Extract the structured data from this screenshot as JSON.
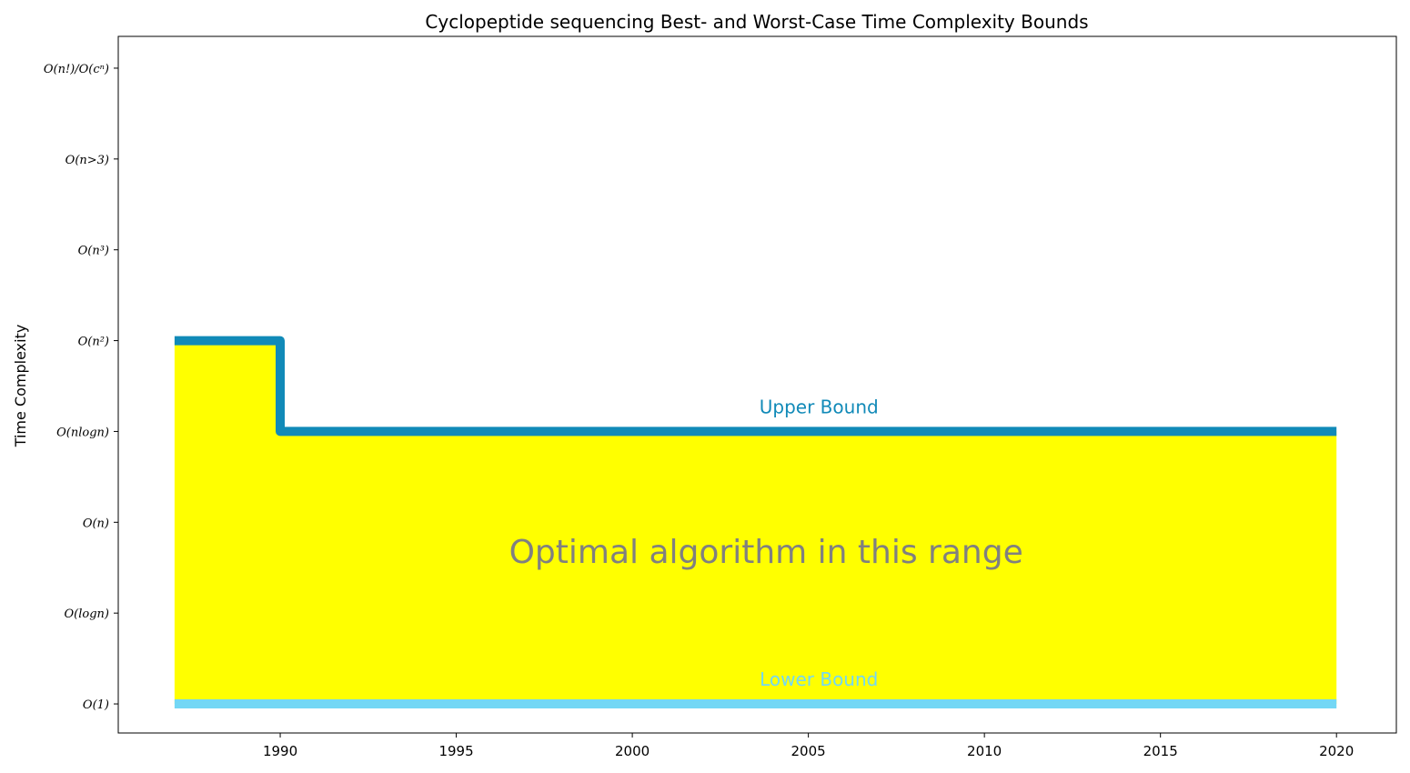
{
  "chart_data": {
    "type": "area",
    "title": "Cyclopeptide sequencing Best- and Worst-Case Time Complexity Bounds",
    "xlabel": "",
    "ylabel": "Time Complexity",
    "xlim": [
      1985.4,
      2021.7
    ],
    "ylim": [
      -0.32,
      7.35
    ],
    "x_ticks": [
      1990,
      1995,
      2000,
      2005,
      2010,
      2015,
      2020
    ],
    "y_ticks": [
      {
        "value": 0,
        "label": "O(1)"
      },
      {
        "value": 1,
        "label": "O(logn)"
      },
      {
        "value": 2,
        "label": "O(n)"
      },
      {
        "value": 3,
        "label": "O(nlogn)"
      },
      {
        "value": 4,
        "label": "O(n²)"
      },
      {
        "value": 5,
        "label": "O(n³)"
      },
      {
        "value": 6,
        "label": "O(n>3)"
      },
      {
        "value": 7,
        "label": "O(n!)/O(cⁿ)"
      }
    ],
    "grid": false,
    "series": [
      {
        "name": "Upper Bound",
        "step": "post",
        "color": "#118ab8",
        "x": [
          1987,
          1990,
          2020
        ],
        "y": [
          4,
          3,
          3
        ]
      },
      {
        "name": "Lower Bound",
        "step": "post",
        "color": "#73d7f5",
        "x": [
          1987,
          2020
        ],
        "y": [
          0,
          0
        ]
      }
    ],
    "fill": {
      "color": "#ffff00",
      "between": [
        "Upper Bound",
        "Lower Bound"
      ]
    },
    "annotations": [
      {
        "text": "Upper Bound",
        "x": 2005.3,
        "y": 3.2,
        "color": "#118ab8"
      },
      {
        "text": "Lower Bound",
        "x": 2005.3,
        "y": 0.2,
        "color": "#73d7f5"
      },
      {
        "text": "Optimal algorithm in this range",
        "x": 2003.8,
        "y": 1.55,
        "color": "#808080"
      }
    ]
  }
}
